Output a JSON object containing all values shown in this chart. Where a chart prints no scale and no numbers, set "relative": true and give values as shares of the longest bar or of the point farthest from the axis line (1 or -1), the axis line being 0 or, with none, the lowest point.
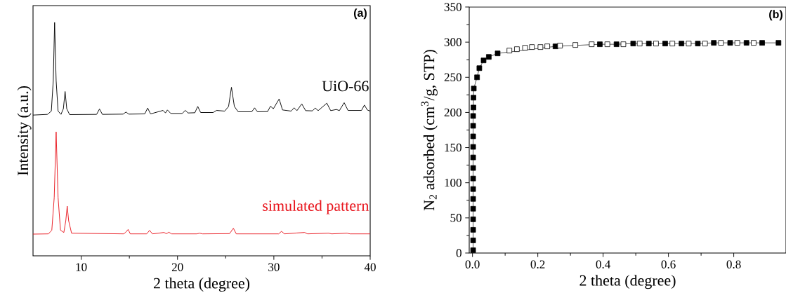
{
  "chart_data": [
    {
      "type": "line",
      "title": "(a)",
      "xlabel": "2 theta (degree)",
      "ylabel": "Intensity (a.u.)",
      "xlim": [
        5,
        40
      ],
      "xticks": [
        10,
        20,
        30,
        40
      ],
      "relative": true,
      "tick_labels": "x",
      "series": [
        {
          "name": "UiO-66",
          "color": "#000000",
          "x": [
            5,
            6.5,
            6.9,
            7.1,
            7.24,
            7.4,
            7.6,
            7.9,
            8.15,
            8.33,
            8.5,
            8.8,
            11.6,
            11.9,
            12.2,
            14.35,
            14.65,
            14.95,
            16.6,
            16.9,
            17.2,
            18.5,
            18.75,
            18.95,
            19.3,
            20.5,
            20.8,
            21.1,
            21.8,
            22.1,
            22.4,
            23.7,
            24.05,
            24.9,
            25.3,
            25.6,
            25.9,
            26.3,
            27.7,
            28.0,
            28.3,
            29.35,
            29.65,
            29.95,
            30.55,
            30.9,
            31.8,
            32.1,
            32.4,
            32.9,
            33.3,
            34.0,
            34.3,
            34.6,
            35.5,
            35.9,
            36.5,
            36.8,
            37.3,
            37.7,
            39.1,
            39.4,
            39.7,
            40
          ],
          "values": [
            0.603,
            0.606,
            0.62,
            0.75,
            1.0,
            0.75,
            0.62,
            0.606,
            0.63,
            0.704,
            0.63,
            0.605,
            0.606,
            0.629,
            0.606,
            0.607,
            0.616,
            0.607,
            0.608,
            0.633,
            0.608,
            0.623,
            0.612,
            0.625,
            0.61,
            0.61,
            0.623,
            0.612,
            0.613,
            0.64,
            0.614,
            0.614,
            0.623,
            0.62,
            0.64,
            0.722,
            0.64,
            0.617,
            0.617,
            0.634,
            0.617,
            0.618,
            0.641,
            0.63,
            0.672,
            0.625,
            0.62,
            0.634,
            0.622,
            0.651,
            0.622,
            0.621,
            0.633,
            0.622,
            0.654,
            0.622,
            0.627,
            0.622,
            0.656,
            0.623,
            0.623,
            0.646,
            0.625,
            0.62
          ]
        },
        {
          "name": "simulated pattern",
          "color": "#e8141c",
          "x": [
            5,
            6.6,
            6.95,
            7.2,
            7.4,
            7.6,
            7.85,
            8.2,
            8.4,
            8.55,
            8.7,
            9.0,
            14.4,
            14.6,
            14.87,
            15.1,
            16.8,
            17.1,
            17.4,
            18.6,
            18.85,
            19.1,
            19.4,
            22.0,
            22.3,
            22.6,
            25.4,
            25.8,
            26.1,
            30.5,
            30.8,
            31.1,
            32.4,
            33.2,
            33.5,
            35.7,
            36,
            37.6,
            37.9,
            40
          ],
          "values": [
            0.093,
            0.094,
            0.11,
            0.25,
            0.531,
            0.25,
            0.11,
            0.1,
            0.15,
            0.213,
            0.15,
            0.097,
            0.094,
            0.1,
            0.113,
            0.094,
            0.094,
            0.109,
            0.094,
            0.1,
            0.095,
            0.101,
            0.094,
            0.094,
            0.097,
            0.094,
            0.095,
            0.118,
            0.094,
            0.094,
            0.105,
            0.094,
            0.098,
            0.1,
            0.094,
            0.097,
            0.094,
            0.097,
            0.094,
            0.094
          ]
        }
      ]
    },
    {
      "type": "line",
      "title": "(b)",
      "xlabel": "2 theta (degree)",
      "ylabel": "N$_{2}$ adsorbed (cm$^{3}$/g, STP)",
      "xlim": [
        -0.01,
        0.96
      ],
      "xticks": [
        {
          "value": 0,
          "label": "0.0"
        },
        0.2,
        0.4,
        0.6,
        0.8
      ],
      "ylim": [
        0,
        350
      ],
      "yticks": [
        0,
        50,
        100,
        150,
        200,
        250,
        300,
        350
      ],
      "marker": "square",
      "series": [
        {
          "color": "#000000",
          "x": [
            0.002,
            0.002,
            0.002,
            0.002,
            0.002,
            0.002,
            0.002,
            0.002,
            0.002,
            0.002,
            0.002,
            0.002,
            0.002,
            0.002,
            0.003,
            0.003,
            0.004,
            0.014,
            0.021,
            0.034,
            0.05,
            0.077,
            0.254,
            0.39,
            0.441,
            0.492,
            0.54,
            0.59,
            0.64,
            0.69,
            0.739,
            0.789,
            0.839,
            0.887,
            0.937
          ],
          "values": [
            4,
            18,
            33,
            48,
            63,
            77,
            91,
            106,
            121,
            136,
            151,
            166,
            181,
            195,
            207,
            221,
            234,
            250,
            263,
            274,
            279,
            284,
            294,
            297,
            297,
            298,
            298,
            298,
            298,
            298,
            299,
            299,
            299,
            299,
            299
          ]
        },
        {
          "type": "scatter",
          "color": "#ffffff",
          "x": [
            0.113,
            0.136,
            0.161,
            0.182,
            0.208,
            0.229,
            0.268,
            0.315,
            0.365,
            0.413,
            0.462,
            0.512,
            0.562,
            0.612,
            0.662,
            0.712,
            0.761,
            0.811,
            0.861
          ],
          "values": [
            288,
            290,
            292,
            293,
            293,
            294,
            295,
            296,
            297,
            297,
            297,
            298,
            298,
            298,
            298,
            298,
            299,
            299,
            299
          ]
        }
      ]
    }
  ]
}
